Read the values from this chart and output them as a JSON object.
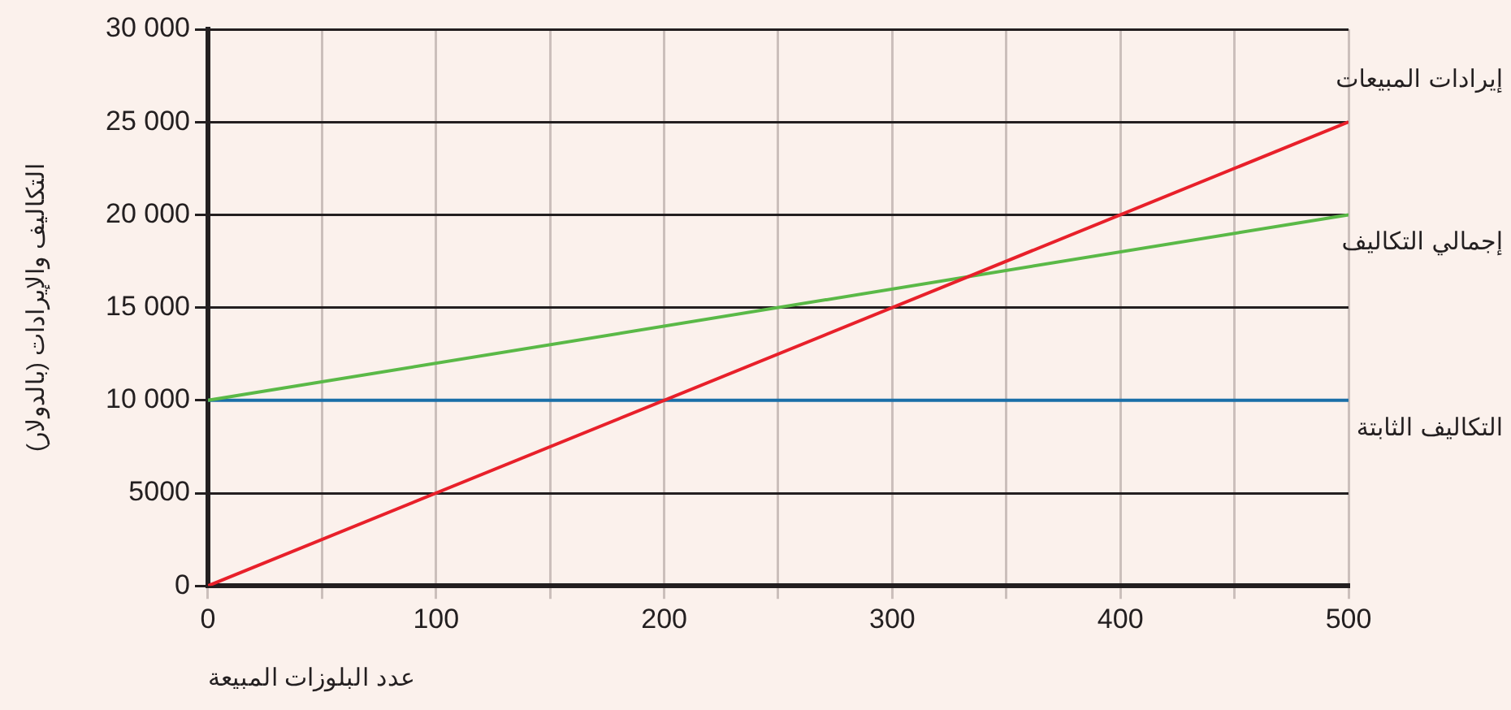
{
  "chart_data": {
    "type": "line",
    "xlabel": "عدد البلوزات المبيعة",
    "ylabel": "التكاليف والإيرادات (بالدولار)",
    "x": [
      0,
      500
    ],
    "series": [
      {
        "name": "إيرادات المبيعات",
        "color": "#e8202a",
        "values": [
          0,
          25000
        ]
      },
      {
        "name": "إجمالي التكاليف",
        "color": "#5ab947",
        "values": [
          10000,
          20000
        ]
      },
      {
        "name": "التكاليف الثابتة",
        "color": "#1a6fa8",
        "values": [
          10000,
          10000
        ]
      }
    ],
    "xlim": [
      0,
      500
    ],
    "xticks": [
      0,
      {
        "value": 50,
        "label": null
      },
      100,
      {
        "value": 150,
        "label": null
      },
      200,
      {
        "value": 250,
        "label": null
      },
      300,
      {
        "value": 350,
        "label": null
      },
      400,
      {
        "value": 450,
        "label": null
      },
      500
    ],
    "ylim": [
      0,
      30000
    ],
    "yticks": [
      0,
      5000,
      {
        "value": 10000,
        "label": "10 000"
      },
      {
        "value": 15000,
        "label": "15 000"
      },
      {
        "value": 20000,
        "label": "20 000"
      },
      {
        "value": 25000,
        "label": "25 000"
      },
      {
        "value": 30000,
        "label": "30 000"
      }
    ],
    "grid": true,
    "legend": false,
    "marker": "none",
    "line_style": "solid"
  }
}
